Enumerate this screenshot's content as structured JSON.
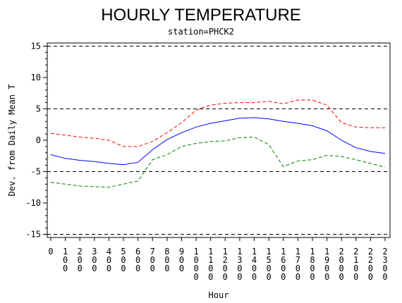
{
  "chart_data": {
    "type": "line",
    "title": "HOURLY TEMPERATURE",
    "subtitle": "station=PHCK2",
    "xlabel": "Hour",
    "ylabel": "Dev. from Daily Mean T",
    "x": [
      0,
      100,
      200,
      300,
      400,
      500,
      600,
      700,
      800,
      900,
      1000,
      1100,
      1200,
      1300,
      1400,
      1500,
      1600,
      1700,
      1800,
      1900,
      2000,
      2100,
      2200,
      2300
    ],
    "x_tick_labels": [
      "0",
      "100",
      "200",
      "300",
      "400",
      "500",
      "600",
      "700",
      "800",
      "900",
      "1000",
      "1100",
      "1200",
      "1300",
      "1400",
      "1500",
      "1600",
      "1700",
      "1800",
      "1900",
      "2000",
      "2100",
      "2200",
      "2300"
    ],
    "ylim": [
      -15.5,
      15.5
    ],
    "y_ticks": [
      -15,
      -10,
      -5,
      0,
      5,
      10,
      15
    ],
    "reference_lines": [
      -15,
      -5,
      5,
      15
    ],
    "series": [
      {
        "color": "#ff0000",
        "dash": "dashed",
        "values": [
          1.1,
          0.8,
          0.5,
          0.3,
          0.0,
          -1.0,
          -1.0,
          -0.2,
          1.2,
          2.8,
          4.8,
          5.6,
          5.9,
          6.0,
          6.0,
          6.2,
          5.8,
          6.4,
          6.4,
          5.6,
          2.8,
          2.1,
          2.0,
          2.0
        ]
      },
      {
        "color": "#0000ff",
        "dash": "solid",
        "values": [
          -2.3,
          -2.9,
          -3.2,
          -3.4,
          -3.7,
          -3.9,
          -3.5,
          -1.5,
          0.1,
          1.2,
          2.1,
          2.7,
          3.1,
          3.5,
          3.6,
          3.4,
          3.0,
          2.7,
          2.3,
          1.5,
          0.0,
          -1.2,
          -1.8,
          -2.1
        ]
      },
      {
        "color": "#008000",
        "dash": "dashed",
        "values": [
          -6.7,
          -7.0,
          -7.3,
          -7.4,
          -7.5,
          -7.0,
          -6.5,
          -3.1,
          -2.3,
          -1.0,
          -0.5,
          -0.2,
          -0.1,
          0.4,
          0.5,
          -0.7,
          -4.2,
          -3.3,
          -3.1,
          -2.4,
          -2.6,
          -3.1,
          -3.7,
          -4.3
        ]
      }
    ],
    "grid": false,
    "legend": "none"
  }
}
